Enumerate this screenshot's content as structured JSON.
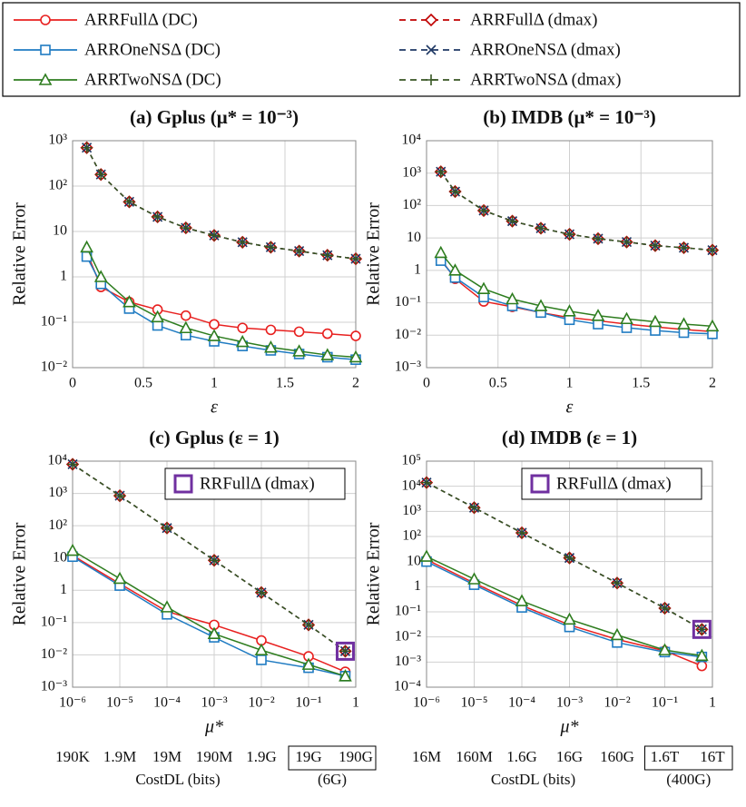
{
  "chart_data": [
    {
      "type": "line",
      "title": "(a) Gplus (μ* = 10⁻³)",
      "x_label": "ε",
      "y_label": "Relative Error",
      "x": [
        0.1,
        0.2,
        0.4,
        0.6,
        0.8,
        1.0,
        1.2,
        1.4,
        1.6,
        1.8,
        2.0
      ],
      "xlim": [
        0,
        2
      ],
      "xticks": [
        0,
        0.5,
        1,
        1.5,
        2
      ],
      "log_x": false,
      "ylim": [
        0.01,
        1000
      ],
      "log_y": true,
      "grid": true,
      "yticks": [
        {
          "value": 0.01,
          "label": "10⁻²"
        },
        {
          "value": 0.1,
          "label": "10⁻¹"
        },
        1,
        10,
        {
          "value": 100,
          "label": "10²"
        },
        {
          "value": 1000,
          "label": "10³"
        }
      ],
      "series": [
        {
          "name": "ARRFullΔ (DC)",
          "color": "#e8201f",
          "marker": "circle",
          "dashed": false,
          "values": [
            3.5,
            0.6,
            0.28,
            0.19,
            0.14,
            0.09,
            0.075,
            0.068,
            0.062,
            0.056,
            0.05
          ]
        },
        {
          "name": "ARROneNSΔ (DC)",
          "color": "#1f7bc2",
          "marker": "square",
          "dashed": false,
          "values": [
            2.8,
            0.7,
            0.2,
            0.085,
            0.052,
            0.038,
            0.03,
            0.024,
            0.02,
            0.017,
            0.015
          ]
        },
        {
          "name": "ARRTwoNSΔ (DC)",
          "color": "#2e7d1f",
          "marker": "triangle",
          "dashed": false,
          "values": [
            4.5,
            1.0,
            0.28,
            0.13,
            0.075,
            0.05,
            0.037,
            0.028,
            0.023,
            0.019,
            0.017
          ]
        },
        {
          "name": "ARRFullΔ (dmax)",
          "color": "#c00000",
          "marker": "diamond",
          "dashed": true,
          "values": [
            700,
            180,
            45,
            21,
            12,
            8.2,
            5.8,
            4.5,
            3.7,
            3.0,
            2.5
          ]
        },
        {
          "name": "ARROneNSΔ (dmax)",
          "color": "#1f3864",
          "marker": "cross",
          "dashed": true,
          "values": [
            700,
            180,
            45,
            21,
            12,
            8.2,
            5.8,
            4.5,
            3.7,
            3.0,
            2.5
          ]
        },
        {
          "name": "ARRTwoNSΔ (dmax)",
          "color": "#375623",
          "marker": "plus",
          "dashed": true,
          "values": [
            700,
            180,
            45,
            21,
            12,
            8.2,
            5.8,
            4.5,
            3.7,
            3.0,
            2.5
          ]
        }
      ]
    },
    {
      "type": "line",
      "title": "(b) IMDB (μ* = 10⁻³)",
      "x_label": "ε",
      "y_label": "Relative Error",
      "x": [
        0.1,
        0.2,
        0.4,
        0.6,
        0.8,
        1.0,
        1.2,
        1.4,
        1.6,
        1.8,
        2.0
      ],
      "xlim": [
        0,
        2
      ],
      "xticks": [
        0,
        0.5,
        1,
        1.5,
        2
      ],
      "log_x": false,
      "ylim": [
        0.001,
        10000
      ],
      "log_y": true,
      "grid": true,
      "yticks": [
        {
          "value": 0.001,
          "label": "10⁻³"
        },
        {
          "value": 0.01,
          "label": "10⁻²"
        },
        {
          "value": 0.1,
          "label": "10⁻¹"
        },
        1,
        10,
        {
          "value": 100,
          "label": "10²"
        },
        {
          "value": 1000,
          "label": "10³"
        },
        {
          "value": 10000,
          "label": "10⁴"
        }
      ],
      "series": [
        {
          "color": "#e8201f",
          "marker": "circle",
          "dashed": false,
          "values": [
            2.2,
            0.55,
            0.11,
            0.075,
            0.05,
            0.035,
            0.028,
            0.022,
            0.018,
            0.015,
            0.013
          ]
        },
        {
          "color": "#1f7bc2",
          "marker": "square",
          "dashed": false,
          "values": [
            2.0,
            0.6,
            0.15,
            0.08,
            0.05,
            0.03,
            0.022,
            0.017,
            0.014,
            0.012,
            0.011
          ]
        },
        {
          "color": "#2e7d1f",
          "marker": "triangle",
          "dashed": false,
          "values": [
            3.5,
            1.0,
            0.27,
            0.13,
            0.08,
            0.055,
            0.04,
            0.032,
            0.026,
            0.022,
            0.019
          ]
        },
        {
          "color": "#c00000",
          "marker": "diamond",
          "dashed": true,
          "values": [
            1100,
            270,
            70,
            33,
            20,
            13,
            9.5,
            7.5,
            5.8,
            5,
            4.2
          ]
        },
        {
          "color": "#1f3864",
          "marker": "cross",
          "dashed": true,
          "values": [
            1100,
            270,
            70,
            33,
            20,
            13,
            9.5,
            7.5,
            5.8,
            5,
            4.2
          ]
        },
        {
          "color": "#375623",
          "marker": "plus",
          "dashed": true,
          "values": [
            1100,
            270,
            70,
            33,
            20,
            13,
            9.5,
            7.5,
            5.8,
            5,
            4.2
          ]
        }
      ]
    },
    {
      "type": "line",
      "title": "(c) Gplus (ε = 1)",
      "x_label": "μ*",
      "y_label": "Relative Error",
      "x": [
        1e-06,
        1e-05,
        0.0001,
        0.001,
        0.01,
        0.1,
        0.6
      ],
      "xlim": [
        1e-06,
        1
      ],
      "log_x": true,
      "xticks": [
        {
          "value": 1e-06,
          "label": "10⁻⁶"
        },
        {
          "value": 1e-05,
          "label": "10⁻⁵"
        },
        {
          "value": 0.0001,
          "label": "10⁻⁴"
        },
        {
          "value": 0.001,
          "label": "10⁻³"
        },
        {
          "value": 0.01,
          "label": "10⁻²"
        },
        {
          "value": 0.1,
          "label": "10⁻¹"
        },
        1
      ],
      "ylim": [
        0.001,
        10000
      ],
      "log_y": true,
      "grid": true,
      "yticks": [
        {
          "value": 0.001,
          "label": "10⁻³"
        },
        {
          "value": 0.01,
          "label": "10⁻²"
        },
        {
          "value": 0.1,
          "label": "10⁻¹"
        },
        1,
        10,
        {
          "value": 100,
          "label": "10²"
        },
        {
          "value": 1000,
          "label": "10³"
        },
        {
          "value": 10000,
          "label": "10⁴"
        }
      ],
      "series": [
        {
          "color": "#e8201f",
          "marker": "circle",
          "dashed": false,
          "values": [
            12,
            1.6,
            0.22,
            0.085,
            0.028,
            0.009,
            0.003
          ]
        },
        {
          "color": "#1f7bc2",
          "marker": "square",
          "dashed": false,
          "values": [
            11,
            1.4,
            0.18,
            0.035,
            0.007,
            0.004,
            0.0022
          ]
        },
        {
          "color": "#2e7d1f",
          "marker": "triangle",
          "dashed": false,
          "values": [
            17,
            2.3,
            0.3,
            0.045,
            0.014,
            0.005,
            0.0022
          ]
        },
        {
          "color": "#c00000",
          "marker": "diamond",
          "dashed": true,
          "values": [
            8000,
            850,
            85,
            8.5,
            0.85,
            0.085,
            0.013
          ]
        },
        {
          "color": "#1f3864",
          "marker": "cross",
          "dashed": true,
          "values": [
            8000,
            850,
            85,
            8.5,
            0.85,
            0.085,
            0.013
          ]
        },
        {
          "color": "#375623",
          "marker": "plus",
          "dashed": true,
          "values": [
            8000,
            850,
            85,
            8.5,
            0.85,
            0.085,
            0.013
          ]
        },
        {
          "name": "RRFullΔ (dmax)",
          "color": "#7030a0",
          "marker": "bigsquare",
          "dashed": false,
          "values": [
            null,
            null,
            null,
            null,
            null,
            null,
            0.013
          ]
        }
      ],
      "cost_labels": [
        "190K",
        "1.9M",
        "19M",
        "190M",
        "1.9G",
        "19G",
        "190G"
      ],
      "cost_axis_label": "CostDL (bits)",
      "cost_note": "(6G)"
    },
    {
      "type": "line",
      "title": "(d) IMDB (ε = 1)",
      "x_label": "μ*",
      "y_label": "Relative Error",
      "x": [
        1e-06,
        1e-05,
        0.0001,
        0.001,
        0.01,
        0.1,
        0.6
      ],
      "xlim": [
        1e-06,
        1
      ],
      "log_x": true,
      "xticks": [
        {
          "value": 1e-06,
          "label": "10⁻⁶"
        },
        {
          "value": 1e-05,
          "label": "10⁻⁵"
        },
        {
          "value": 0.0001,
          "label": "10⁻⁴"
        },
        {
          "value": 0.001,
          "label": "10⁻³"
        },
        {
          "value": 0.01,
          "label": "10⁻²"
        },
        {
          "value": 0.1,
          "label": "10⁻¹"
        },
        1
      ],
      "ylim": [
        0.0001,
        100000
      ],
      "log_y": true,
      "grid": true,
      "yticks": [
        {
          "value": 0.0001,
          "label": "10⁻⁴"
        },
        {
          "value": 0.001,
          "label": "10⁻³"
        },
        {
          "value": 0.01,
          "label": "10⁻²"
        },
        {
          "value": 0.1,
          "label": "10⁻¹"
        },
        1,
        10,
        {
          "value": 100,
          "label": "10²"
        },
        {
          "value": 1000,
          "label": "10³"
        },
        {
          "value": 10000,
          "label": "10⁴"
        },
        {
          "value": 100000,
          "label": "10⁵"
        }
      ],
      "series": [
        {
          "color": "#e8201f",
          "marker": "circle",
          "dashed": false,
          "values": [
            12,
            1.4,
            0.18,
            0.03,
            0.008,
            0.0028,
            0.0007
          ]
        },
        {
          "color": "#1f7bc2",
          "marker": "square",
          "dashed": false,
          "values": [
            10,
            1.2,
            0.15,
            0.025,
            0.006,
            0.0025,
            0.0016
          ]
        },
        {
          "color": "#2e7d1f",
          "marker": "triangle",
          "dashed": false,
          "values": [
            16,
            2.0,
            0.27,
            0.05,
            0.012,
            0.003,
            0.0018
          ]
        },
        {
          "color": "#c00000",
          "marker": "diamond",
          "dashed": true,
          "values": [
            14000,
            1400,
            140,
            14,
            1.4,
            0.14,
            0.02
          ]
        },
        {
          "color": "#1f3864",
          "marker": "cross",
          "dashed": true,
          "values": [
            14000,
            1400,
            140,
            14,
            1.4,
            0.14,
            0.02
          ]
        },
        {
          "color": "#375623",
          "marker": "plus",
          "dashed": true,
          "values": [
            14000,
            1400,
            140,
            14,
            1.4,
            0.14,
            0.02
          ]
        },
        {
          "name": "RRFullΔ (dmax)",
          "color": "#7030a0",
          "marker": "bigsquare",
          "dashed": false,
          "values": [
            null,
            null,
            null,
            null,
            null,
            null,
            0.02
          ]
        }
      ],
      "cost_labels": [
        "16M",
        "160M",
        "1.6G",
        "16G",
        "160G",
        "1.6T",
        "16T"
      ],
      "cost_axis_label": "CostDL (bits)",
      "cost_note": "(400G)"
    }
  ]
}
